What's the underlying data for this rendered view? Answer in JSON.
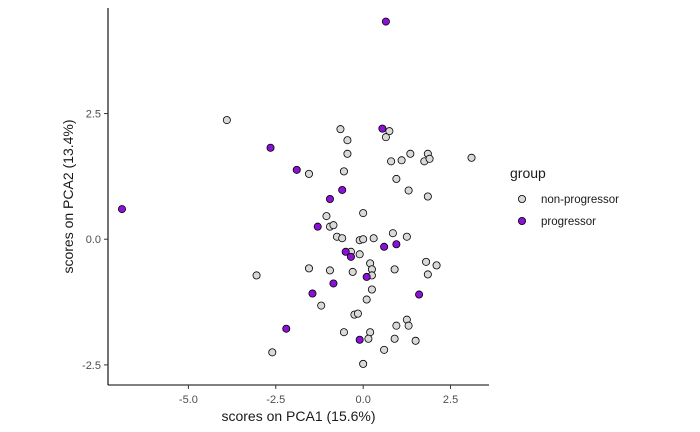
{
  "chart_data": {
    "type": "scatter",
    "xlabel": "scores on PCA1 (15.6%)",
    "ylabel": "scores on PCA2 (13.4%)",
    "xlim": [
      -7.3,
      3.6
    ],
    "ylim": [
      -2.9,
      4.6
    ],
    "x_ticks": [
      -5.0,
      -2.5,
      0.0,
      2.5
    ],
    "x_tick_labels": [
      "-5.0",
      "-2.5",
      "0.0",
      "2.5"
    ],
    "y_ticks": [
      -2.5,
      0.0,
      2.5
    ],
    "y_tick_labels": [
      "-2.5",
      "0.0",
      "2.5"
    ],
    "grid": false,
    "legend_position": "right",
    "legend": {
      "title": "group"
    },
    "series": [
      {
        "name": "non-progressor",
        "color": "#d9d9d9",
        "points": [
          [
            -3.9,
            2.37
          ],
          [
            -0.65,
            2.19
          ],
          [
            0.75,
            2.15
          ],
          [
            0.65,
            2.03
          ],
          [
            -0.45,
            1.97
          ],
          [
            -0.45,
            1.7
          ],
          [
            1.35,
            1.7
          ],
          [
            1.85,
            1.7
          ],
          [
            1.1,
            1.57
          ],
          [
            0.8,
            1.55
          ],
          [
            1.75,
            1.55
          ],
          [
            1.9,
            1.6
          ],
          [
            3.1,
            1.62
          ],
          [
            -1.55,
            1.3
          ],
          [
            -0.55,
            1.35
          ],
          [
            0.95,
            1.2
          ],
          [
            1.3,
            0.97
          ],
          [
            1.85,
            0.85
          ],
          [
            0.0,
            0.52
          ],
          [
            -1.05,
            0.46
          ],
          [
            -0.95,
            0.25
          ],
          [
            -0.85,
            0.28
          ],
          [
            -0.75,
            0.05
          ],
          [
            -0.6,
            0.02
          ],
          [
            -0.1,
            -0.02
          ],
          [
            0.0,
            0.0
          ],
          [
            0.3,
            0.02
          ],
          [
            0.85,
            0.12
          ],
          [
            1.25,
            0.05
          ],
          [
            -0.35,
            -0.25
          ],
          [
            -0.1,
            -0.3
          ],
          [
            0.2,
            -0.48
          ],
          [
            0.25,
            -0.6
          ],
          [
            0.9,
            -0.6
          ],
          [
            1.8,
            -0.45
          ],
          [
            2.1,
            -0.52
          ],
          [
            1.85,
            -0.7
          ],
          [
            -1.55,
            -0.58
          ],
          [
            -0.95,
            -0.62
          ],
          [
            -0.3,
            -0.65
          ],
          [
            0.25,
            -0.72
          ],
          [
            -3.05,
            -0.72
          ],
          [
            0.25,
            -1.0
          ],
          [
            0.1,
            -1.2
          ],
          [
            -1.2,
            -1.32
          ],
          [
            -0.25,
            -1.5
          ],
          [
            -0.15,
            -1.48
          ],
          [
            1.25,
            -1.6
          ],
          [
            1.3,
            -1.72
          ],
          [
            0.95,
            -1.72
          ],
          [
            -0.55,
            -1.85
          ],
          [
            0.2,
            -1.85
          ],
          [
            0.15,
            -1.98
          ],
          [
            0.9,
            -1.98
          ],
          [
            1.5,
            -2.02
          ],
          [
            0.6,
            -2.2
          ],
          [
            -2.6,
            -2.25
          ],
          [
            0.0,
            -2.48
          ]
        ]
      },
      {
        "name": "progressor",
        "color": "#8b10d8",
        "points": [
          [
            0.65,
            4.33
          ],
          [
            0.55,
            2.2
          ],
          [
            -2.65,
            1.82
          ],
          [
            -1.9,
            1.38
          ],
          [
            -0.6,
            0.98
          ],
          [
            -0.95,
            0.8
          ],
          [
            -1.3,
            0.25
          ],
          [
            -0.5,
            -0.25
          ],
          [
            -0.35,
            -0.35
          ],
          [
            0.6,
            -0.15
          ],
          [
            0.95,
            -0.1
          ],
          [
            0.1,
            -0.75
          ],
          [
            -0.85,
            -0.88
          ],
          [
            -1.45,
            -1.08
          ],
          [
            1.6,
            -1.1
          ],
          [
            -2.2,
            -1.78
          ],
          [
            -0.1,
            -2.0
          ],
          [
            -6.9,
            0.6
          ]
        ]
      }
    ]
  }
}
